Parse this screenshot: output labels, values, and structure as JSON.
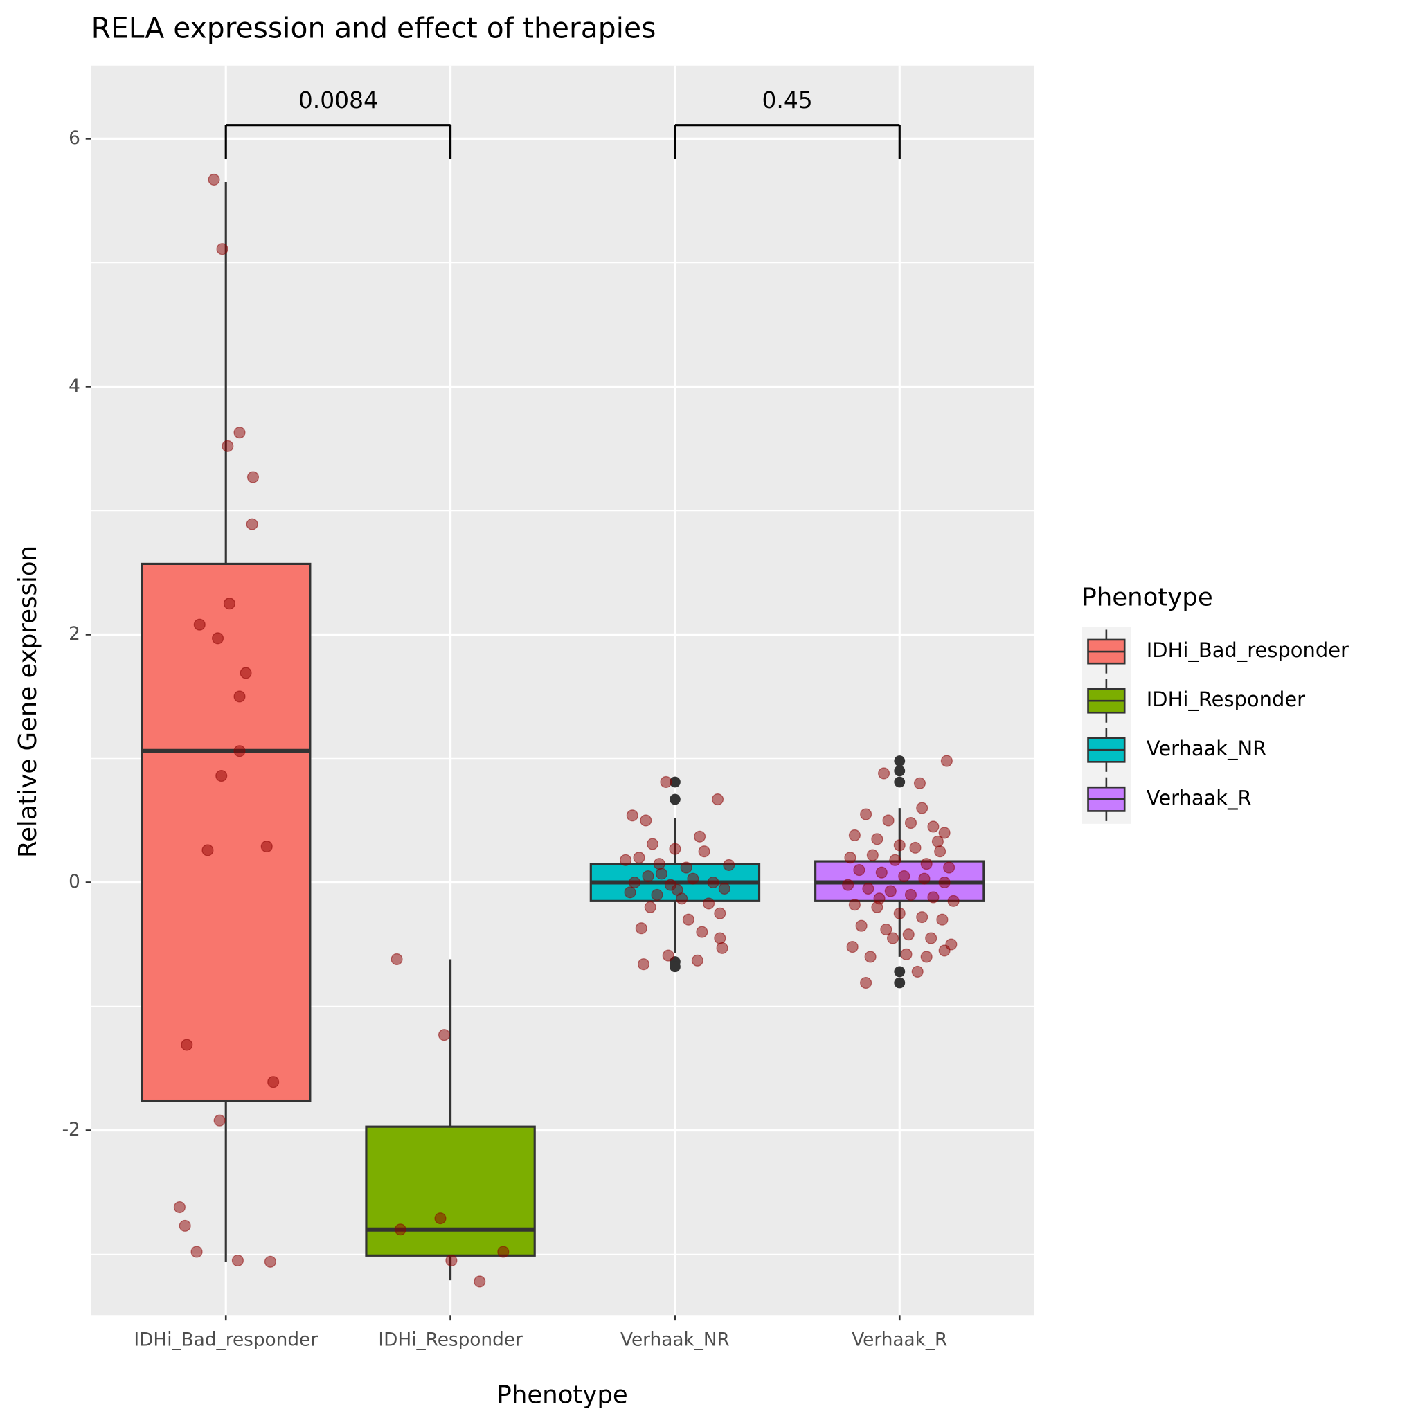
{
  "chart_data": {
    "type": "box",
    "title": "RELA expression and effect of therapies",
    "x_label": "Phenotype",
    "y_label": "Relative Gene expression",
    "legend_title": "Phenotype",
    "categories": [
      "IDHi_Bad_responder",
      "IDHi_Responder",
      "Verhaak_NR",
      "Verhaak_R"
    ],
    "xlim": [
      0.4,
      4.6
    ],
    "ylim": [
      -3.49,
      6.59
    ],
    "yticks": [
      -2,
      0,
      2,
      4,
      6
    ],
    "yminor": [
      -3,
      -1,
      1,
      3,
      5
    ],
    "grid": true,
    "point_color": "#8b0000",
    "outlier_color": "#333333",
    "series": [
      {
        "name": "IDHi_Bad_responder",
        "color": "#F8766D",
        "whisker_low": -3.06,
        "q1": -1.76,
        "median": 1.06,
        "q3": 2.57,
        "whisker_high": 5.65,
        "outliers": [],
        "points": [
          5.67,
          5.11,
          3.63,
          3.52,
          3.27,
          2.89,
          2.25,
          2.08,
          1.97,
          1.69,
          1.5,
          1.06,
          0.86,
          0.26,
          0.29,
          -1.31,
          -1.61,
          -1.92,
          -2.62,
          -2.77,
          -2.98,
          -3.05,
          -3.06
        ],
        "points_x": [
          0.947,
          0.984,
          1.061,
          1.008,
          1.121,
          1.117,
          1.016,
          0.883,
          0.964,
          1.089,
          1.061,
          1.061,
          0.98,
          0.919,
          1.182,
          0.826,
          1.211,
          0.972,
          0.794,
          0.818,
          0.87,
          1.053,
          1.198
        ]
      },
      {
        "name": "IDHi_Responder",
        "color": "#7CAE00",
        "whisker_low": -3.21,
        "q1": -3.01,
        "median": -2.8,
        "q3": -1.97,
        "whisker_high": -0.62,
        "outliers": [],
        "points": [
          -0.62,
          -1.23,
          -2.8,
          -2.71,
          -3.05,
          -2.98,
          -3.22
        ],
        "points_x": [
          1.761,
          1.972,
          1.777,
          1.955,
          2.004,
          2.235,
          2.13
        ]
      },
      {
        "name": "Verhaak_NR",
        "color": "#00BFC4",
        "whisker_low": -0.57,
        "q1": -0.15,
        "median": 0,
        "q3": 0.15,
        "whisker_high": 0.52,
        "outliers": [
          0.81,
          0.67,
          -0.64,
          -0.68
        ],
        "points": [
          0.81,
          0.54,
          0.5,
          0.67,
          0.37,
          0.31,
          0.27,
          0.2,
          0.15,
          0.12,
          0.25,
          0.14,
          0.18,
          0.05,
          0.03,
          0,
          0,
          -0.02,
          -0.05,
          -0.1,
          -0.13,
          -0.17,
          -0.25,
          -0.2,
          -0.3,
          -0.37,
          -0.4,
          -0.45,
          -0.59,
          -0.63,
          -0.66,
          -0.53,
          0.07,
          -0.06,
          -0.08
        ],
        "points_x": [
          2.96,
          2.81,
          2.87,
          3.19,
          3.11,
          2.9,
          3.0,
          2.84,
          2.93,
          3.05,
          3.13,
          3.24,
          2.78,
          2.88,
          3.08,
          3.17,
          2.82,
          2.98,
          3.22,
          2.92,
          3.03,
          3.15,
          3.2,
          2.89,
          3.06,
          2.85,
          3.12,
          3.2,
          2.97,
          3.1,
          2.86,
          3.21,
          2.94,
          3.01,
          2.8
        ]
      },
      {
        "name": "Verhaak_R",
        "color": "#C77CFF",
        "whisker_low": -0.6,
        "q1": -0.15,
        "median": 0,
        "q3": 0.17,
        "whisker_high": 0.6,
        "outliers": [
          0.98,
          0.9,
          0.81,
          -0.72,
          -0.81
        ],
        "points": [
          0.88,
          0.8,
          0.98,
          0.6,
          0.55,
          0.5,
          0.48,
          0.45,
          0.4,
          0.38,
          0.35,
          0.3,
          0.28,
          0.25,
          0.2,
          0.22,
          0.18,
          0.15,
          0.12,
          0.1,
          0.08,
          0.05,
          0.03,
          0,
          -0.02,
          -0.05,
          -0.07,
          -0.1,
          -0.12,
          -0.15,
          -0.18,
          -0.2,
          -0.25,
          -0.28,
          -0.3,
          -0.35,
          -0.38,
          -0.42,
          -0.45,
          -0.5,
          -0.52,
          -0.6,
          -0.58,
          -0.55,
          -0.72,
          -0.81,
          -0.45,
          -0.6,
          -0.13,
          0.33
        ],
        "points_x": [
          3.93,
          4.09,
          4.21,
          4.1,
          3.85,
          3.95,
          4.05,
          4.15,
          4.2,
          3.8,
          3.9,
          4.0,
          4.07,
          4.18,
          3.78,
          3.88,
          3.98,
          4.12,
          4.22,
          3.82,
          3.92,
          4.02,
          4.11,
          4.2,
          3.77,
          3.86,
          3.96,
          4.05,
          4.15,
          4.24,
          3.8,
          3.9,
          4.0,
          4.1,
          4.19,
          3.83,
          3.94,
          4.04,
          4.14,
          4.23,
          3.79,
          3.87,
          4.03,
          4.2,
          4.08,
          3.85,
          3.97,
          4.12,
          3.91,
          4.17
        ]
      }
    ],
    "annotations": [
      {
        "text": "0.0084",
        "x": [
          1,
          2
        ],
        "y": 6.11,
        "tip": 5.84
      },
      {
        "text": "0.45",
        "x": [
          3,
          4
        ],
        "y": 6.11,
        "tip": 5.84
      }
    ]
  }
}
